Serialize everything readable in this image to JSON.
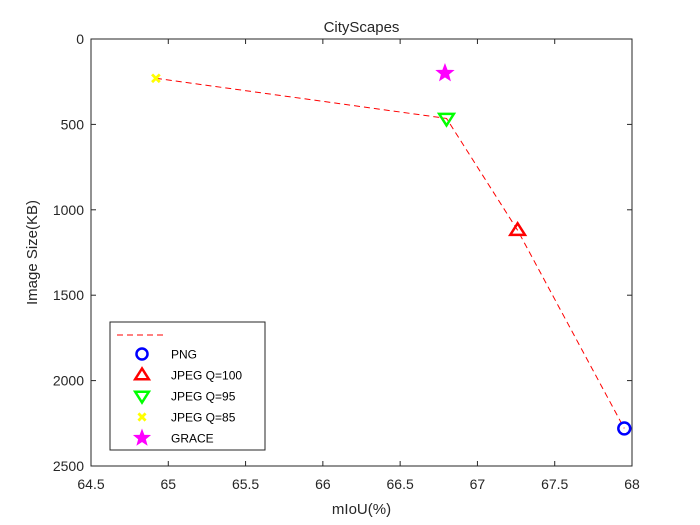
{
  "chart_data": {
    "type": "scatter",
    "title": "CityScapes",
    "xlabel": "mIoU(%)",
    "ylabel": "Image Size(KB)",
    "xlim": [
      64.5,
      68
    ],
    "ylim": [
      0,
      2500
    ],
    "y_reversed": true,
    "xticks": [
      "64.5",
      "65",
      "65.5",
      "66",
      "66.5",
      "67",
      "67.5",
      "68"
    ],
    "yticks": [
      "0",
      "500",
      "1000",
      "1500",
      "2000",
      "2500"
    ],
    "grid": false,
    "legend_position": "bottom-left",
    "trend_line": {
      "name": "",
      "color": "#ff0000",
      "style": "dashed",
      "points": [
        [
          64.92,
          230
        ],
        [
          66.8,
          465
        ],
        [
          67.26,
          1120
        ],
        [
          67.95,
          2280
        ]
      ]
    },
    "series": [
      {
        "name": "PNG",
        "marker": "circle",
        "color": "#0000ff",
        "x": 67.95,
        "y": 2280
      },
      {
        "name": "JPEG Q=100",
        "marker": "triangle-up",
        "color": "#ff0000",
        "x": 67.26,
        "y": 1120
      },
      {
        "name": "JPEG Q=95",
        "marker": "triangle-down",
        "color": "#00ff00",
        "x": 66.8,
        "y": 465
      },
      {
        "name": "JPEG Q=85",
        "marker": "x",
        "color": "#ffff00",
        "x": 64.92,
        "y": 230
      },
      {
        "name": "GRACE",
        "marker": "star",
        "color": "#ff00ff",
        "x": 66.79,
        "y": 200
      }
    ]
  }
}
